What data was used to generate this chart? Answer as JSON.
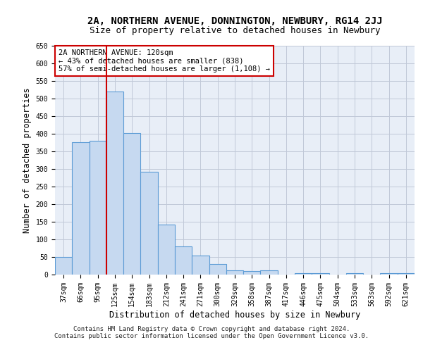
{
  "title": "2A, NORTHERN AVENUE, DONNINGTON, NEWBURY, RG14 2JJ",
  "subtitle": "Size of property relative to detached houses in Newbury",
  "xlabel": "Distribution of detached houses by size in Newbury",
  "ylabel": "Number of detached properties",
  "categories": [
    "37sqm",
    "66sqm",
    "95sqm",
    "125sqm",
    "154sqm",
    "183sqm",
    "212sqm",
    "241sqm",
    "271sqm",
    "300sqm",
    "329sqm",
    "358sqm",
    "387sqm",
    "417sqm",
    "446sqm",
    "475sqm",
    "504sqm",
    "533sqm",
    "563sqm",
    "592sqm",
    "621sqm"
  ],
  "values": [
    50,
    377,
    380,
    520,
    403,
    293,
    143,
    80,
    55,
    30,
    12,
    10,
    12,
    0,
    5,
    5,
    0,
    5,
    0,
    5,
    5
  ],
  "bar_color": "#c6d9f0",
  "bar_edge_color": "#5b9bd5",
  "grid_color": "#c0c8d8",
  "background_color": "#e8eef7",
  "vline_x_index": 3,
  "vline_color": "#cc0000",
  "annotation_text": "2A NORTHERN AVENUE: 120sqm\n← 43% of detached houses are smaller (838)\n57% of semi-detached houses are larger (1,108) →",
  "annotation_box_color": "#ffffff",
  "annotation_border_color": "#cc0000",
  "footer_line1": "Contains HM Land Registry data © Crown copyright and database right 2024.",
  "footer_line2": "Contains public sector information licensed under the Open Government Licence v3.0.",
  "ylim": [
    0,
    650
  ],
  "yticks": [
    0,
    50,
    100,
    150,
    200,
    250,
    300,
    350,
    400,
    450,
    500,
    550,
    600,
    650
  ],
  "title_fontsize": 10,
  "subtitle_fontsize": 9,
  "axis_label_fontsize": 8.5,
  "tick_fontsize": 7,
  "annotation_fontsize": 7.5,
  "footer_fontsize": 6.5
}
